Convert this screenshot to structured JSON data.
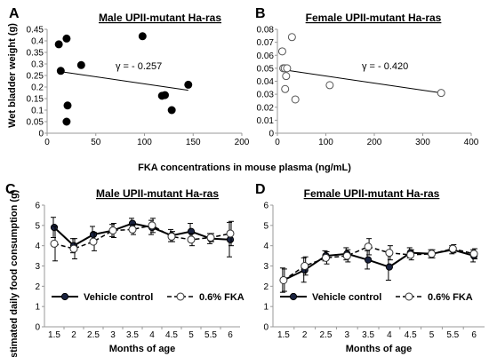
{
  "shared": {
    "top_xlabel": "FKA concentrations in mouse plasma (ng/mL)",
    "bottom_ylabel": "Estimated  daily food consumption (g)"
  },
  "chart_data": [
    {
      "panel": "A",
      "type": "scatter",
      "title": "Male UPII-mutant Ha-ras",
      "xlabel": "FKA concentrations in mouse plasma (ng/mL)",
      "ylabel": "Wet bladder weight (g)",
      "xlim": [
        0,
        200
      ],
      "ylim": [
        0,
        0.45
      ],
      "xticks": [
        "0",
        "50",
        "100",
        "150",
        "200"
      ],
      "yticks": [
        "0",
        "0.05",
        "0.1",
        "0.15",
        "0.2",
        "0.25",
        "0.3",
        "0.35",
        "0.4",
        "0.45"
      ],
      "annotation": "γ = - 0.257",
      "marker": "filled",
      "points": [
        [
          12,
          0.385
        ],
        [
          14,
          0.27
        ],
        [
          20,
          0.41
        ],
        [
          21,
          0.12
        ],
        [
          20,
          0.05
        ],
        [
          35,
          0.295
        ],
        [
          98,
          0.42
        ],
        [
          118,
          0.162
        ],
        [
          121,
          0.165
        ],
        [
          128,
          0.1
        ],
        [
          145,
          0.21
        ]
      ],
      "trendline": [
        [
          12,
          0.268
        ],
        [
          145,
          0.186
        ]
      ]
    },
    {
      "panel": "B",
      "type": "scatter",
      "title": "Female UPII-mutant Ha-ras",
      "xlabel": "FKA concentrations in mouse plasma (ng/mL)",
      "ylabel": "",
      "xlim": [
        0,
        400
      ],
      "ylim": [
        0,
        0.08
      ],
      "xticks": [
        "0",
        "100",
        "200",
        "300",
        "400"
      ],
      "yticks": [
        "0",
        "0.01",
        "0.02",
        "0.03",
        "0.04",
        "0.05",
        "0.06",
        "0.07",
        "0.08"
      ],
      "annotation": "γ = - 0.420",
      "marker": "open",
      "points": [
        [
          10,
          0.063
        ],
        [
          12,
          0.05
        ],
        [
          15,
          0.05
        ],
        [
          16,
          0.034
        ],
        [
          18,
          0.044
        ],
        [
          20,
          0.05
        ],
        [
          30,
          0.074
        ],
        [
          37,
          0.026
        ],
        [
          108,
          0.037
        ],
        [
          338,
          0.031
        ]
      ],
      "trendline": [
        [
          10,
          0.049
        ],
        [
          338,
          0.031
        ]
      ]
    },
    {
      "panel": "C",
      "type": "line",
      "title": "Male UPII-mutant Ha-ras",
      "xlabel": "Months of age",
      "ylabel": "Estimated  daily food consumption (g)",
      "ylim": [
        0,
        6
      ],
      "categories": [
        "1.5",
        "2",
        "2.5",
        "3",
        "3.5",
        "4",
        "4.5",
        "5",
        "5.5",
        "6"
      ],
      "yticks": [
        "0",
        "1",
        "2",
        "3",
        "4",
        "5",
        "6"
      ],
      "legend_position": "bottom",
      "series": [
        {
          "name": "Vehicle control",
          "style": "solid-filled",
          "values": [
            4.9,
            4.0,
            4.55,
            4.75,
            5.1,
            4.9,
            4.5,
            4.7,
            4.35,
            4.3
          ],
          "errors": [
            0.5,
            0.35,
            0.4,
            0.3,
            0.25,
            0.35,
            0.3,
            0.4,
            0.25,
            0.85
          ]
        },
        {
          "name": "0.6% FKA",
          "style": "dashed-open",
          "values": [
            4.1,
            3.85,
            4.2,
            4.75,
            4.8,
            5.0,
            4.45,
            4.3,
            4.4,
            4.6
          ],
          "errors": [
            0.85,
            0.5,
            0.45,
            0.35,
            0.25,
            0.35,
            0.25,
            0.3,
            0.2,
            0.6
          ]
        }
      ]
    },
    {
      "panel": "D",
      "type": "line",
      "title": "Female UPII-mutant Ha-ras",
      "xlabel": "Months of age",
      "ylabel": "",
      "ylim": [
        0,
        6
      ],
      "categories": [
        "1.5",
        "2",
        "2.5",
        "3",
        "3.5",
        "4",
        "4.5",
        "5",
        "5.5",
        "6"
      ],
      "yticks": [
        "0",
        "1",
        "2",
        "3",
        "4",
        "5",
        "6"
      ],
      "legend_position": "bottom",
      "series": [
        {
          "name": "Vehicle control",
          "style": "solid-filled",
          "values": [
            2.3,
            2.8,
            3.5,
            3.6,
            3.3,
            2.95,
            3.65,
            3.6,
            3.8,
            3.5
          ],
          "errors": [
            0.6,
            0.6,
            0.25,
            0.3,
            0.45,
            0.65,
            0.25,
            0.2,
            0.2,
            0.3
          ]
        },
        {
          "name": "0.6% FKA",
          "style": "dashed-open",
          "values": [
            2.3,
            3.0,
            3.4,
            3.5,
            3.95,
            3.65,
            3.55,
            3.6,
            3.85,
            3.6
          ],
          "errors": [
            0.55,
            0.45,
            0.3,
            0.3,
            0.4,
            0.35,
            0.25,
            0.2,
            0.2,
            0.25
          ]
        }
      ]
    }
  ]
}
